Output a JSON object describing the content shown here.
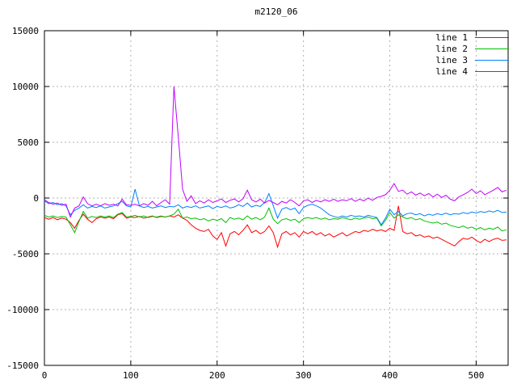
{
  "chart_data": {
    "type": "line",
    "title": "m2120_06",
    "xlabel": "",
    "ylabel": "",
    "xlim": [
      0,
      537
    ],
    "ylim": [
      -15000,
      15000
    ],
    "x_ticks": [
      0,
      100,
      200,
      300,
      400,
      500
    ],
    "y_ticks": [
      -15000,
      -10000,
      -5000,
      0,
      5000,
      10000,
      15000
    ],
    "grid": true,
    "legend_position": "top-right-inside",
    "background_color": "#ffffff",
    "grid_color": "#b0b0b0",
    "axis_color": "#000000",
    "x_start": 0,
    "x_step": 5,
    "series": [
      {
        "name": "line 1",
        "color": "#ff0000",
        "values": [
          -1750,
          -1900,
          -1750,
          -1950,
          -1800,
          -1900,
          -2200,
          -2700,
          -2000,
          -1450,
          -1900,
          -2200,
          -1850,
          -1700,
          -1800,
          -1700,
          -1850,
          -1500,
          -1400,
          -1800,
          -1700,
          -1750,
          -1650,
          -1800,
          -1700,
          -1600,
          -1750,
          -1650,
          -1700,
          -1600,
          -1700,
          -1500,
          -1800,
          -2000,
          -2400,
          -2700,
          -2900,
          -3000,
          -2800,
          -3400,
          -3700,
          -3100,
          -4300,
          -3200,
          -3000,
          -3300,
          -2900,
          -2400,
          -3100,
          -2900,
          -3200,
          -3000,
          -2500,
          -3100,
          -4400,
          -3200,
          -3000,
          -3300,
          -3100,
          -3500,
          -3000,
          -3200,
          -3000,
          -3300,
          -3100,
          -3400,
          -3200,
          -3500,
          -3300,
          -3100,
          -3400,
          -3200,
          -3000,
          -3100,
          -2900,
          -3000,
          -2800,
          -2950,
          -2850,
          -3000,
          -2700,
          -2900,
          -700,
          -3000,
          -3200,
          -3100,
          -3400,
          -3300,
          -3500,
          -3400,
          -3600,
          -3500,
          -3700,
          -3900,
          -4100,
          -4300,
          -3900,
          -3600,
          -3700,
          -3500,
          -3800,
          -4000,
          -3700,
          -3900,
          -3700,
          -3600,
          -3800,
          -3750
        ]
      },
      {
        "name": "line 2",
        "color": "#00c000",
        "values": [
          -1550,
          -1700,
          -1600,
          -1750,
          -1650,
          -1700,
          -2400,
          -3100,
          -2100,
          -1200,
          -1800,
          -1650,
          -1750,
          -1600,
          -1700,
          -1600,
          -1750,
          -1450,
          -1300,
          -1700,
          -1650,
          -1550,
          -1700,
          -1600,
          -1750,
          -1650,
          -1700,
          -1600,
          -1700,
          -1600,
          -1450,
          -1000,
          -1800,
          -1700,
          -1850,
          -1800,
          -1950,
          -1850,
          -2050,
          -1900,
          -2000,
          -1850,
          -2200,
          -1750,
          -1900,
          -1800,
          -1950,
          -1600,
          -1900,
          -1750,
          -1950,
          -1700,
          -900,
          -1900,
          -2300,
          -1950,
          -1850,
          -2000,
          -1900,
          -2200,
          -1850,
          -1750,
          -1850,
          -1750,
          -1900,
          -1800,
          -1950,
          -1850,
          -1900,
          -1750,
          -1850,
          -1950,
          -1800,
          -1900,
          -1800,
          -1700,
          -1850,
          -1800,
          -2500,
          -2000,
          -1300,
          -1800,
          -1500,
          -1700,
          -1850,
          -1750,
          -1950,
          -1850,
          -2050,
          -2150,
          -2250,
          -2150,
          -2350,
          -2250,
          -2450,
          -2550,
          -2650,
          -2500,
          -2700,
          -2600,
          -2800,
          -2650,
          -2850,
          -2700,
          -2800,
          -2600,
          -2950,
          -2850
        ]
      },
      {
        "name": "line 3",
        "color": "#0080ff",
        "values": [
          -250,
          -500,
          -400,
          -600,
          -500,
          -700,
          -1500,
          -1100,
          -900,
          -600,
          -900,
          -750,
          -850,
          -700,
          -900,
          -800,
          -700,
          -500,
          -300,
          -700,
          -800,
          800,
          -700,
          -850,
          -750,
          -900,
          -800,
          -700,
          -850,
          -750,
          -800,
          -600,
          -900,
          -750,
          -850,
          -700,
          -900,
          -800,
          -700,
          -950,
          -750,
          -850,
          -700,
          -900,
          -800,
          -600,
          -750,
          -450,
          -800,
          -650,
          -750,
          -400,
          400,
          -700,
          -1800,
          -1000,
          -850,
          -1050,
          -900,
          -1400,
          -850,
          -650,
          -550,
          -700,
          -900,
          -1200,
          -1500,
          -1650,
          -1750,
          -1600,
          -1700,
          -1550,
          -1650,
          -1600,
          -1700,
          -1550,
          -1650,
          -1750,
          -2400,
          -1800,
          -1000,
          -1500,
          -1200,
          -1600,
          -1400,
          -1350,
          -1500,
          -1400,
          -1600,
          -1450,
          -1550,
          -1400,
          -1500,
          -1350,
          -1500,
          -1400,
          -1450,
          -1300,
          -1400,
          -1250,
          -1350,
          -1200,
          -1300,
          -1150,
          -1250,
          -1100,
          -1300,
          -1250
        ]
      },
      {
        "name": "line 4",
        "color": "#c000ff",
        "values": [
          -150,
          -400,
          -550,
          -450,
          -650,
          -550,
          -1700,
          -900,
          -700,
          100,
          -500,
          -700,
          -550,
          -700,
          -500,
          -650,
          -550,
          -700,
          -100,
          -600,
          -650,
          -550,
          -700,
          -500,
          -650,
          -300,
          -700,
          -400,
          -150,
          -550,
          10000,
          5500,
          800,
          -300,
          200,
          -500,
          -250,
          -450,
          -150,
          -400,
          -250,
          -80,
          -400,
          -200,
          -80,
          -350,
          -60,
          700,
          -150,
          -350,
          -100,
          -450,
          -200,
          -400,
          -600,
          -300,
          -450,
          -150,
          -400,
          -700,
          -250,
          -150,
          -400,
          -200,
          -350,
          -150,
          -300,
          -100,
          -300,
          -150,
          -250,
          -50,
          -300,
          -100,
          -250,
          0,
          -200,
          50,
          150,
          300,
          700,
          1300,
          600,
          700,
          350,
          550,
          250,
          450,
          200,
          400,
          100,
          350,
          50,
          250,
          -100,
          -250,
          100,
          300,
          500,
          800,
          400,
          650,
          300,
          500,
          700,
          950,
          550,
          700
        ]
      }
    ]
  }
}
